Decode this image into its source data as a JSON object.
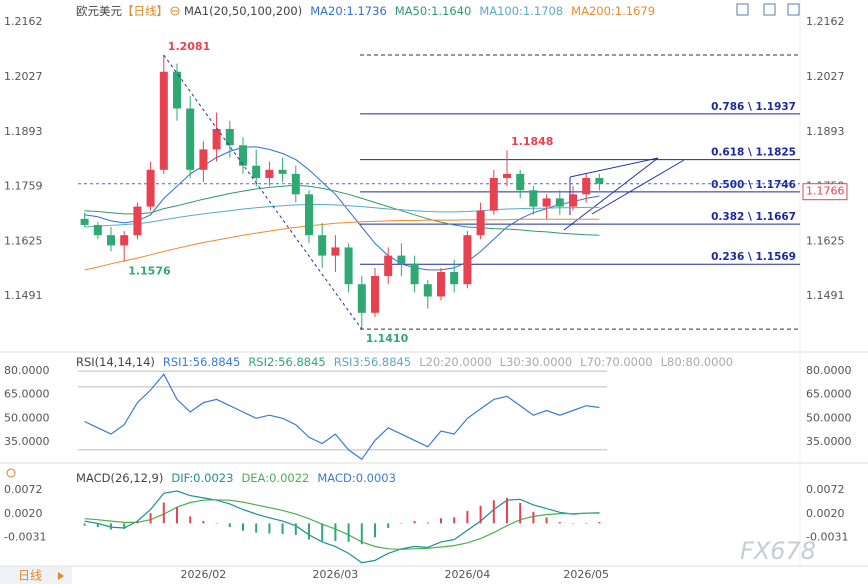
{
  "chart_data": [
    {
      "type": "candlestick",
      "title": "欧元美元",
      "subtitle": "【日线】",
      "indicator": "MA1(20,50,100,200)",
      "categories": [
        null,
        null,
        null,
        null,
        null,
        null,
        null,
        null,
        null,
        "2026/02",
        null,
        null,
        null,
        null,
        null,
        null,
        null,
        null,
        null,
        "2026/03",
        null,
        null,
        null,
        null,
        null,
        null,
        null,
        null,
        null,
        "2026/04",
        null,
        null,
        null,
        null,
        null,
        null,
        null,
        null,
        "2026/05",
        null
      ],
      "open": [
        1.168,
        1.1665,
        1.164,
        1.1615,
        1.164,
        1.171,
        1.18,
        1.204,
        1.195,
        1.18,
        1.185,
        1.19,
        1.186,
        1.181,
        1.178,
        1.18,
        1.179,
        1.174,
        1.164,
        1.159,
        1.161,
        1.152,
        1.145,
        1.154,
        1.159,
        1.157,
        1.152,
        1.149,
        1.155,
        1.152,
        1.164,
        1.17,
        1.178,
        1.179,
        1.175,
        1.171,
        1.173,
        1.171,
        1.174,
        1.178
      ],
      "high": [
        1.1695,
        1.1672,
        1.166,
        1.165,
        1.172,
        1.182,
        1.2081,
        1.206,
        1.198,
        1.187,
        1.194,
        1.192,
        1.188,
        1.185,
        1.182,
        1.183,
        1.181,
        1.175,
        1.167,
        1.164,
        1.162,
        1.154,
        1.156,
        1.161,
        1.162,
        1.159,
        1.153,
        1.156,
        1.158,
        1.165,
        1.172,
        1.18,
        1.1848,
        1.18,
        1.176,
        1.174,
        1.175,
        1.176,
        1.179,
        1.179
      ],
      "low": [
        1.166,
        1.163,
        1.16,
        1.1576,
        1.163,
        1.17,
        1.179,
        1.192,
        1.178,
        1.177,
        1.182,
        1.183,
        1.179,
        1.176,
        1.176,
        1.177,
        1.172,
        1.162,
        1.156,
        1.155,
        1.15,
        1.141,
        1.144,
        1.152,
        1.154,
        1.15,
        1.146,
        1.148,
        1.15,
        1.151,
        1.163,
        1.169,
        1.176,
        1.173,
        1.169,
        1.168,
        1.169,
        1.17,
        1.172,
        1.175
      ],
      "close": [
        1.1665,
        1.164,
        1.1615,
        1.164,
        1.171,
        1.18,
        1.204,
        1.195,
        1.18,
        1.185,
        1.19,
        1.186,
        1.181,
        1.178,
        1.18,
        1.179,
        1.174,
        1.164,
        1.159,
        1.161,
        1.152,
        1.145,
        1.154,
        1.159,
        1.157,
        1.152,
        1.149,
        1.155,
        1.152,
        1.164,
        1.17,
        1.178,
        1.179,
        1.175,
        1.171,
        1.173,
        1.171,
        1.174,
        1.178,
        1.1766
      ],
      "up_color": "#e8414f",
      "down_color": "#2fa872",
      "series": [
        {
          "name": "MA20:1.1736",
          "color": "#2e6fd8",
          "values": [
            1.169,
            1.1685,
            1.1675,
            1.167,
            1.1675,
            1.169,
            1.173,
            1.176,
            1.179,
            1.181,
            1.183,
            1.1845,
            1.1855,
            1.1856,
            1.185,
            1.184,
            1.1825,
            1.18,
            1.177,
            1.174,
            1.17,
            1.166,
            1.162,
            1.159,
            1.157,
            1.156,
            1.1555,
            1.1555,
            1.156,
            1.1575,
            1.16,
            1.163,
            1.166,
            1.168,
            1.1695,
            1.1705,
            1.1715,
            1.1722,
            1.173,
            1.1736
          ]
        },
        {
          "name": "MA50:1.1640",
          "color": "#2d9a6c",
          "values": [
            1.17,
            1.1698,
            1.1695,
            1.1692,
            1.1692,
            1.1695,
            1.1705,
            1.1712,
            1.172,
            1.1728,
            1.1735,
            1.1742,
            1.1748,
            1.1753,
            1.1757,
            1.176,
            1.1762,
            1.176,
            1.1755,
            1.1748,
            1.174,
            1.173,
            1.172,
            1.171,
            1.17,
            1.169,
            1.168,
            1.1672,
            1.1665,
            1.166,
            1.1658,
            1.1656,
            1.1655,
            1.1653,
            1.165,
            1.1648,
            1.1645,
            1.1643,
            1.1641,
            1.164
          ]
        },
        {
          "name": "MA100:1.1708",
          "color": "#5aa9c9",
          "values": [
            1.166,
            1.1662,
            1.1664,
            1.1666,
            1.1668,
            1.1672,
            1.1678,
            1.1683,
            1.1688,
            1.1692,
            1.1696,
            1.17,
            1.1704,
            1.1707,
            1.171,
            1.1712,
            1.1714,
            1.1715,
            1.1715,
            1.1714,
            1.1712,
            1.171,
            1.1707,
            1.1704,
            1.1702,
            1.17,
            1.1698,
            1.1697,
            1.1697,
            1.1698,
            1.17,
            1.1702,
            1.1704,
            1.1705,
            1.1706,
            1.1706,
            1.1707,
            1.1707,
            1.1708,
            1.1708
          ]
        },
        {
          "name": "MA200:1.1679",
          "color": "#ee8a2e",
          "values": [
            1.1555,
            1.1562,
            1.157,
            1.1577,
            1.1584,
            1.1592,
            1.16,
            1.1608,
            1.1615,
            1.1622,
            1.1628,
            1.1634,
            1.164,
            1.1645,
            1.165,
            1.1655,
            1.1659,
            1.1663,
            1.1666,
            1.1669,
            1.1671,
            1.1673,
            1.1674,
            1.1675,
            1.1676,
            1.1676,
            1.1677,
            1.1677,
            1.1677,
            1.1678,
            1.1678,
            1.1678,
            1.1678,
            1.1679,
            1.1679,
            1.1679,
            1.1679,
            1.1679,
            1.1679,
            1.1679
          ]
        }
      ],
      "ylim": [
        1.1359,
        1.2196
      ],
      "yticks": [
        1.2162,
        1.2027,
        1.1893,
        1.1759,
        1.1625,
        1.1491
      ],
      "annotations": [
        {
          "value": 1.2081,
          "label": "1.2081"
        },
        {
          "value": 1.1576,
          "label": "1.1576"
        },
        {
          "value": 1.141,
          "label": "1.1410"
        },
        {
          "value": 1.1848,
          "label": "1.1848"
        }
      ],
      "fib_range": [
        1.2081,
        1.141
      ],
      "fib_levels": [
        {
          "label": "0.786 \\ 1.1937",
          "value": 1.1937
        },
        {
          "label": "0.618 \\ 1.1825",
          "value": 1.1825
        },
        {
          "label": "0.500 \\ 1.1746",
          "value": 1.1746
        },
        {
          "label": "0.382 \\ 1.1667",
          "value": 1.1667
        },
        {
          "label": "0.236 \\ 1.1569",
          "value": 1.1569
        }
      ],
      "last_price": 1.1766
    },
    {
      "type": "line",
      "title": "RSI(14,14,14)",
      "series": [
        {
          "name": "RSI1:56.8845",
          "color": "#3a7bd5",
          "values": [
            48,
            44,
            40,
            46,
            60,
            68,
            78,
            62,
            54,
            60,
            62,
            58,
            54,
            50,
            52,
            50,
            46,
            38,
            34,
            40,
            30,
            24,
            36,
            44,
            40,
            36,
            32,
            42,
            40,
            50,
            56,
            62,
            64,
            58,
            52,
            55,
            52,
            55,
            58,
            56.8845
          ]
        }
      ],
      "extra_legend": [
        {
          "name": "RSI2:56.8845",
          "color": "#2fa872"
        },
        {
          "name": "RSI3:56.8845",
          "color": "#5aa9c9"
        }
      ],
      "levels": [
        {
          "label": "L20:20.0000",
          "value": 20
        },
        {
          "label": "L30:30.0000",
          "value": 30
        },
        {
          "label": "L70:70.0000",
          "value": 70
        },
        {
          "label": "L80:80.0000",
          "value": 80
        }
      ],
      "ylim": [
        22.3,
        90.2
      ],
      "yticks": [
        {
          "value": 80,
          "label": "80.0000"
        },
        {
          "value": 65,
          "label": "65.0000"
        },
        {
          "value": 50,
          "label": "50.0000"
        },
        {
          "value": 35,
          "label": "35.0000"
        }
      ]
    },
    {
      "type": "macd",
      "title": "MACD(26,12,9)",
      "series": [
        {
          "name": "DIF:0.0023",
          "color": "#1a8f9a",
          "values": [
            0.0005,
            0,
            -0.0008,
            -0.001,
            0.0005,
            0.003,
            0.0065,
            0.007,
            0.006,
            0.0055,
            0.005,
            0.0042,
            0.003,
            0.002,
            0.0012,
            0.0005,
            -0.0005,
            -0.0025,
            -0.004,
            -0.005,
            -0.0065,
            -0.0085,
            -0.008,
            -0.0065,
            -0.0055,
            -0.005,
            -0.0052,
            -0.004,
            -0.0035,
            -0.0015,
            0.0005,
            0.003,
            0.005,
            0.0052,
            0.004,
            0.0032,
            0.0024,
            0.002,
            0.0022,
            0.0023
          ]
        },
        {
          "name": "DEA:0.0022",
          "color": "#4caf50",
          "values": [
            0.001,
            0.0008,
            0.0005,
            0.0002,
            0.0002,
            0.0008,
            0.002,
            0.0035,
            0.0045,
            0.005,
            0.0051,
            0.005,
            0.0046,
            0.004,
            0.0034,
            0.0028,
            0.002,
            0.001,
            -0.0002,
            -0.0012,
            -0.0025,
            -0.004,
            -0.005,
            -0.0055,
            -0.0056,
            -0.0055,
            -0.0054,
            -0.0051,
            -0.0048,
            -0.0042,
            -0.0033,
            -0.002,
            -0.0005,
            0.0008,
            0.0015,
            0.0019,
            0.0021,
            0.0021,
            0.0022,
            0.0022
          ]
        },
        {
          "name": "MACD:0.0003",
          "color": "#3a7bd5",
          "bars": true,
          "values": [
            -0.0005,
            -0.0008,
            -0.0013,
            -0.0012,
            0.0003,
            0.0022,
            0.0045,
            0.0035,
            0.0015,
            0.0005,
            -0.0001,
            -0.0008,
            -0.0016,
            -0.002,
            -0.0022,
            -0.0023,
            -0.0025,
            -0.0035,
            -0.0038,
            -0.0038,
            -0.004,
            -0.0045,
            -0.003,
            -0.001,
            0.0001,
            0.0005,
            0.0002,
            0.0011,
            0.0013,
            0.0027,
            0.0038,
            0.005,
            0.0055,
            0.0044,
            0.0025,
            0.0013,
            0.0003,
            -0.0001,
            0,
            0.0003
          ]
        }
      ],
      "ylim": [
        -0.009,
        0.0124
      ],
      "yticks": [
        0.0072,
        {
          "value": 0.002,
          "label": "0.0020"
        },
        -0.0031
      ]
    }
  ],
  "bottom_button": "日线",
  "watermark": "FX678"
}
